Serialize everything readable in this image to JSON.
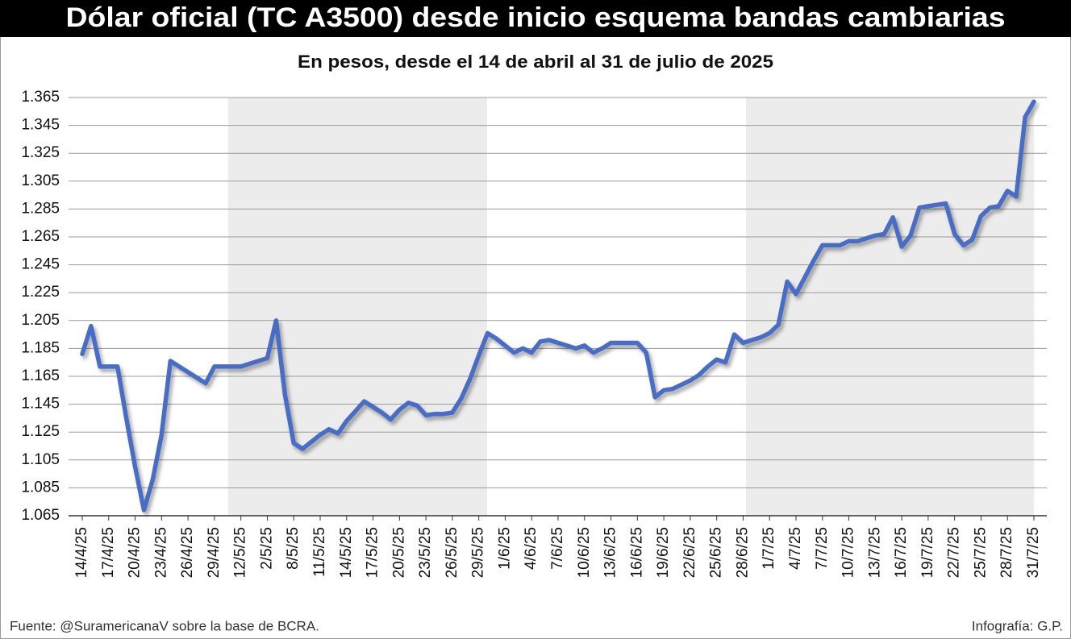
{
  "chart_data": {
    "type": "line",
    "title": "Dólar oficial (TC A3500) desde inicio esquema bandas cambiarias",
    "subtitle": "En pesos, desde el 14 de abril al 31 de julio de 2025",
    "source": "Fuente: @SuramericanaV sobre la base de BCRA.",
    "credit": "Infografía: G.P.",
    "color": "#4a6cc4",
    "grid": true,
    "categories": [
      "14/4/25",
      null,
      null,
      "17/4/25",
      null,
      null,
      "20/4/25",
      null,
      null,
      "23/4/25",
      null,
      null,
      "26/4/25",
      null,
      null,
      "29/4/25",
      null,
      null,
      "12/5/25",
      null,
      null,
      "2/5/25",
      null,
      null,
      "8/5/25",
      null,
      null,
      "11/5/25",
      null,
      null,
      "14/5/25",
      null,
      null,
      "17/5/25",
      null,
      null,
      "20/5/25",
      null,
      null,
      "23/5/25",
      null,
      null,
      "26/5/25",
      null,
      null,
      "29/5/25",
      null,
      null,
      "1/6/25",
      null,
      null,
      "4/6/25",
      null,
      null,
      "7/6/25",
      null,
      null,
      "10/6/25",
      null,
      null,
      "13/6/25",
      null,
      null,
      "16/6/25",
      null,
      null,
      "19/6/25",
      null,
      null,
      "22/6/25",
      null,
      null,
      "25/6/25",
      null,
      null,
      "28/6/25",
      null,
      null,
      "1/7/25",
      null,
      null,
      "4/7/25",
      null,
      null,
      "7/7/25",
      null,
      null,
      "10/7/25",
      null,
      null,
      "13/7/25",
      null,
      null,
      "16/7/25",
      null,
      null,
      "19/7/25",
      null,
      null,
      "22/7/25",
      null,
      null,
      "25/7/25",
      null,
      null,
      "28/7/25",
      null,
      null,
      "31/7/25"
    ],
    "values": [
      1181,
      1201,
      1172,
      1172,
      1172,
      1135,
      1100,
      1069,
      1091,
      1123,
      1176,
      1172,
      1168,
      1164,
      1160,
      1172,
      1172,
      1172,
      1172,
      1174,
      1176,
      1178,
      1205,
      1152,
      1117,
      1113,
      1118,
      1123,
      1127,
      1124,
      1133,
      1140,
      1147,
      1143,
      1139,
      1134,
      1141,
      1146,
      1144,
      1137,
      1138,
      1138,
      1139,
      1149,
      1163,
      1180,
      1196,
      1192,
      1187,
      1182,
      1185,
      1182,
      1190,
      1191,
      1189,
      1187,
      1185,
      1187,
      1182,
      1185,
      1189,
      1189,
      1189,
      1189,
      1182,
      1150,
      1155,
      1156,
      1159,
      1162,
      1166,
      1172,
      1177,
      1175,
      1195,
      1189,
      1191,
      1193,
      1196,
      1202,
      1233,
      1224,
      1236,
      1248,
      1259,
      1259,
      1259,
      1262,
      1262,
      1264,
      1266,
      1267,
      1279,
      1258,
      1266,
      1286,
      1287,
      1288,
      1289,
      1267,
      1259,
      1263,
      1280,
      1286,
      1287,
      1298,
      1294,
      1351,
      1362
    ],
    "ylim": [
      1065,
      1365
    ],
    "yticks": [
      {
        "value": 1065,
        "label": "1.065"
      },
      {
        "value": 1085,
        "label": "1.085"
      },
      {
        "value": 1105,
        "label": "1.105"
      },
      {
        "value": 1125,
        "label": "1.125"
      },
      {
        "value": 1145,
        "label": "1.145"
      },
      {
        "value": 1165,
        "label": "1.165"
      },
      {
        "value": 1185,
        "label": "1.185"
      },
      {
        "value": 1205,
        "label": "1.205"
      },
      {
        "value": 1225,
        "label": "1.225"
      },
      {
        "value": 1245,
        "label": "1.245"
      },
      {
        "value": 1265,
        "label": "1.265"
      },
      {
        "value": 1285,
        "label": "1.285"
      },
      {
        "value": 1305,
        "label": "1.305"
      },
      {
        "value": 1325,
        "label": "1.325"
      },
      {
        "value": 1345,
        "label": "1.345"
      },
      {
        "value": 1365,
        "label": "1.365"
      }
    ]
  }
}
